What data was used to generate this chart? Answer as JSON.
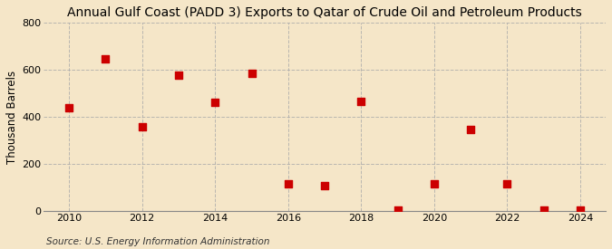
{
  "title": "Annual Gulf Coast (PADD 3) Exports to Qatar of Crude Oil and Petroleum Products",
  "ylabel": "Thousand Barrels",
  "source": "Source: U.S. Energy Information Administration",
  "background_color": "#f5e6c8",
  "years": [
    2010,
    2011,
    2012,
    2013,
    2014,
    2015,
    2016,
    2017,
    2018,
    2019,
    2020,
    2021,
    2022,
    2023,
    2024
  ],
  "values": [
    440,
    645,
    360,
    575,
    460,
    585,
    115,
    110,
    465,
    5,
    115,
    345,
    115,
    5,
    5
  ],
  "marker_color": "#cc0000",
  "marker_size": 28,
  "ylim": [
    0,
    800
  ],
  "yticks": [
    0,
    200,
    400,
    600,
    800
  ],
  "xticks": [
    2010,
    2012,
    2014,
    2016,
    2018,
    2020,
    2022,
    2024
  ],
  "grid_color": "#aaaaaa",
  "grid_style": "--",
  "grid_alpha": 0.8,
  "title_fontsize": 10,
  "axis_fontsize": 8.5,
  "source_fontsize": 7.5,
  "tick_fontsize": 8
}
